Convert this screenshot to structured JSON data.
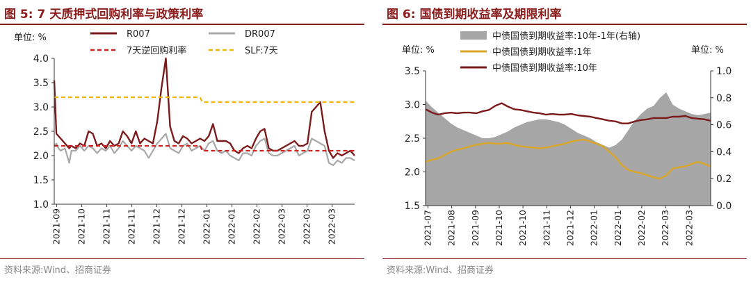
{
  "figures": [
    {
      "title": "图 5:  7 天质押式回购利率与政策利率",
      "source": "资料来源:Wind、招商证券"
    },
    {
      "title": "图 6:  国债到期收益率及期限利率",
      "source": "资料来源:Wind、招商证券"
    }
  ],
  "chart_data": [
    {
      "type": "line",
      "unit_label": "单位: %",
      "ylim": [
        1.0,
        4.0
      ],
      "yticks": [
        "1.0",
        "1.5",
        "2.0",
        "2.5",
        "3.0",
        "3.5",
        "4.0"
      ],
      "xticks": [
        "2021-09",
        "2021-10",
        "2021-11",
        "2021-11",
        "2021-12",
        "2021-12",
        "2022-01",
        "2022-01",
        "2022-02",
        "2022-03",
        "2022-03",
        "2022-03"
      ],
      "xrange": [
        0,
        140
      ],
      "legend_position": "top",
      "grid": false,
      "colors": {
        "R007": "#7b1a1a",
        "DR007": "#a8a8a8",
        "reverse_repo": "#cc2222",
        "slf": "#f0b400"
      },
      "series": [
        {
          "name": "R007",
          "style": "solid",
          "x": [
            0,
            1,
            2,
            3,
            5,
            7,
            8,
            10,
            12,
            14,
            16,
            18,
            20,
            22,
            24,
            26,
            28,
            30,
            32,
            34,
            36,
            38,
            40,
            42,
            44,
            46,
            48,
            50,
            52,
            54,
            56,
            58,
            60,
            62,
            64,
            66,
            68,
            70,
            72,
            74,
            76,
            78,
            80,
            82,
            84,
            86,
            88,
            90,
            92,
            94,
            96,
            98,
            100,
            102,
            104,
            106,
            108,
            110,
            112,
            114,
            116,
            118,
            120,
            122,
            124,
            126,
            128,
            130,
            132,
            134,
            136,
            138,
            140
          ],
          "values": [
            3.55,
            2.45,
            2.4,
            2.35,
            2.25,
            2.15,
            2.2,
            2.15,
            2.25,
            2.2,
            2.5,
            2.45,
            2.2,
            2.25,
            2.15,
            2.3,
            2.2,
            2.25,
            2.5,
            2.4,
            2.25,
            2.5,
            2.25,
            2.35,
            2.3,
            2.25,
            2.7,
            3.4,
            4.0,
            2.6,
            2.3,
            2.25,
            2.4,
            2.35,
            2.25,
            2.3,
            2.35,
            2.3,
            2.4,
            2.65,
            2.3,
            2.3,
            2.3,
            2.25,
            2.1,
            2.05,
            2.15,
            2.2,
            2.15,
            2.35,
            2.5,
            2.55,
            2.15,
            2.1,
            2.1,
            2.15,
            2.2,
            2.25,
            2.3,
            2.2,
            2.2,
            2.25,
            2.9,
            3.0,
            3.1,
            2.5,
            2.1,
            1.95,
            2.05,
            2.0,
            2.05,
            2.1,
            2.0
          ]
        },
        {
          "name": "DR007",
          "style": "solid",
          "x": [
            0,
            1,
            2,
            3,
            5,
            7,
            8,
            10,
            12,
            14,
            16,
            18,
            20,
            22,
            24,
            26,
            28,
            30,
            32,
            34,
            36,
            38,
            40,
            42,
            44,
            46,
            48,
            50,
            52,
            54,
            56,
            58,
            60,
            62,
            64,
            66,
            68,
            70,
            72,
            74,
            76,
            78,
            80,
            82,
            84,
            86,
            88,
            90,
            92,
            94,
            96,
            98,
            100,
            102,
            104,
            106,
            108,
            110,
            112,
            114,
            116,
            118,
            120,
            122,
            124,
            126,
            128,
            130,
            132,
            134,
            136,
            138,
            140
          ],
          "values": [
            2.2,
            2.25,
            2.15,
            2.1,
            2.15,
            1.85,
            2.1,
            2.1,
            2.2,
            2.1,
            2.2,
            2.15,
            2.05,
            2.15,
            2.1,
            2.2,
            2.05,
            2.15,
            2.3,
            2.2,
            2.1,
            2.2,
            2.15,
            2.1,
            1.95,
            2.1,
            2.25,
            2.35,
            2.45,
            2.15,
            2.1,
            2.05,
            2.2,
            2.25,
            2.1,
            2.15,
            2.2,
            2.1,
            2.25,
            2.3,
            2.1,
            2.05,
            2.1,
            2.0,
            1.95,
            1.9,
            2.05,
            2.05,
            2.0,
            2.2,
            2.3,
            2.35,
            2.05,
            2.0,
            2.0,
            2.05,
            2.1,
            2.15,
            2.2,
            2.0,
            2.05,
            2.1,
            2.35,
            2.3,
            2.25,
            2.2,
            1.85,
            1.8,
            1.9,
            1.85,
            1.95,
            1.95,
            1.9
          ]
        },
        {
          "name": "7天逆回购利率",
          "style": "dashed",
          "x": [
            0,
            68,
            69,
            140
          ],
          "values": [
            2.2,
            2.2,
            2.1,
            2.1
          ]
        },
        {
          "name": "SLF:7天",
          "style": "dashed",
          "x": [
            0,
            68,
            69,
            140
          ],
          "values": [
            3.2,
            3.2,
            3.1,
            3.1
          ]
        }
      ]
    },
    {
      "type": "line",
      "unit_label_left": "单位: %",
      "unit_label_right": "单位: %",
      "ylim": [
        1.5,
        3.5
      ],
      "yticks": [
        "1.5",
        "2.0",
        "2.5",
        "3.0",
        "3.5"
      ],
      "ylim_right": [
        0.0,
        1.0
      ],
      "yticks_right": [
        "0.0",
        "0.2",
        "0.4",
        "0.6",
        "0.8",
        "1.0"
      ],
      "xticks": [
        "2021-07",
        "2021-08",
        "2021-09",
        "2021-10",
        "2021-10",
        "2021-11",
        "2021-12",
        "2022-01",
        "2022-01",
        "2022-02",
        "2022-03",
        "2022-03"
      ],
      "xrange": [
        0,
        180
      ],
      "legend_position": "top",
      "grid": false,
      "colors": {
        "spread": "#a6a6a6",
        "y1": "#d9a628",
        "y10": "#7b1a1a"
      },
      "series": [
        {
          "name": "中债国债到期收益率:10年-1年(右轴)",
          "type": "area",
          "axis": "right",
          "x": [
            0,
            4,
            8,
            12,
            16,
            20,
            24,
            28,
            32,
            36,
            40,
            44,
            48,
            52,
            56,
            60,
            64,
            68,
            72,
            76,
            80,
            84,
            88,
            92,
            96,
            100,
            104,
            108,
            112,
            116,
            120,
            124,
            128,
            132,
            136,
            140,
            144,
            148,
            152,
            156,
            160,
            164,
            168,
            172,
            176,
            180
          ],
          "values": [
            0.78,
            0.73,
            0.69,
            0.65,
            0.61,
            0.58,
            0.56,
            0.54,
            0.52,
            0.5,
            0.5,
            0.51,
            0.53,
            0.55,
            0.58,
            0.6,
            0.62,
            0.63,
            0.64,
            0.64,
            0.63,
            0.62,
            0.6,
            0.57,
            0.54,
            0.52,
            0.5,
            0.47,
            0.45,
            0.43,
            0.45,
            0.49,
            0.56,
            0.63,
            0.68,
            0.72,
            0.74,
            0.8,
            0.84,
            0.75,
            0.72,
            0.7,
            0.68,
            0.67,
            0.68,
            0.69
          ]
        },
        {
          "name": "中债国债到期收益率:1年",
          "axis": "left",
          "x": [
            0,
            4,
            8,
            12,
            16,
            20,
            24,
            28,
            32,
            36,
            40,
            44,
            48,
            52,
            56,
            60,
            64,
            68,
            72,
            76,
            80,
            84,
            88,
            92,
            96,
            100,
            104,
            108,
            112,
            116,
            120,
            124,
            128,
            132,
            136,
            140,
            144,
            148,
            152,
            156,
            160,
            164,
            168,
            172,
            176,
            180
          ],
          "values": [
            2.15,
            2.18,
            2.2,
            2.25,
            2.3,
            2.33,
            2.35,
            2.38,
            2.4,
            2.42,
            2.43,
            2.42,
            2.42,
            2.43,
            2.4,
            2.38,
            2.37,
            2.36,
            2.35,
            2.36,
            2.38,
            2.4,
            2.42,
            2.45,
            2.47,
            2.48,
            2.45,
            2.42,
            2.38,
            2.3,
            2.22,
            2.1,
            2.03,
            2.0,
            1.98,
            1.95,
            1.92,
            1.9,
            1.95,
            2.05,
            2.07,
            2.08,
            2.12,
            2.15,
            2.12,
            2.08
          ]
        },
        {
          "name": "中债国债到期收益率:10年",
          "axis": "left",
          "x": [
            0,
            4,
            8,
            12,
            16,
            20,
            24,
            28,
            32,
            36,
            40,
            44,
            48,
            52,
            56,
            60,
            64,
            68,
            72,
            76,
            80,
            84,
            88,
            92,
            96,
            100,
            104,
            108,
            112,
            116,
            120,
            124,
            128,
            132,
            136,
            140,
            144,
            148,
            152,
            156,
            160,
            164,
            168,
            172,
            176,
            180
          ],
          "values": [
            2.93,
            2.88,
            2.85,
            2.87,
            2.88,
            2.87,
            2.88,
            2.88,
            2.87,
            2.9,
            2.92,
            2.98,
            3.02,
            2.97,
            2.93,
            2.92,
            2.9,
            2.88,
            2.87,
            2.85,
            2.86,
            2.85,
            2.85,
            2.86,
            2.84,
            2.83,
            2.82,
            2.8,
            2.78,
            2.76,
            2.75,
            2.72,
            2.72,
            2.75,
            2.77,
            2.78,
            2.8,
            2.8,
            2.8,
            2.82,
            2.82,
            2.83,
            2.8,
            2.79,
            2.78,
            2.76
          ]
        }
      ]
    }
  ]
}
